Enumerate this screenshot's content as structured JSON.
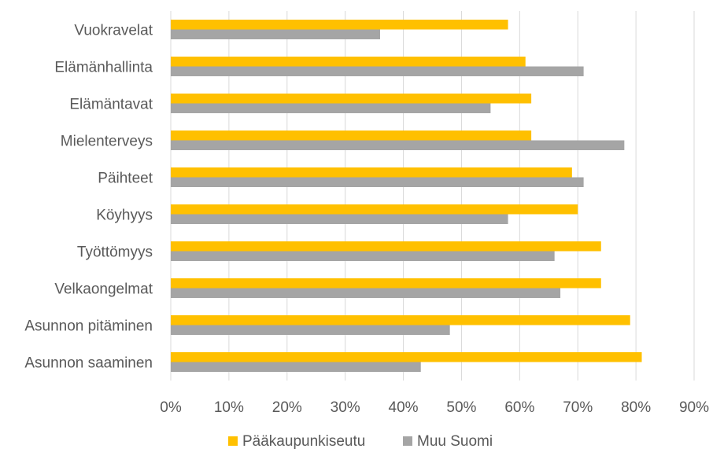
{
  "chart_data": {
    "type": "bar",
    "orientation": "horizontal",
    "categories": [
      "Vuokravelat",
      "Elämänhallinta",
      "Elämäntavat",
      "Mielenterveys",
      "Päihteet",
      "Köyhyys",
      "Työttömyys",
      "Velkaongelmat",
      "Asunnon pitäminen",
      "Asunnon saaminen"
    ],
    "series": [
      {
        "name": "Pääkaupunkiseutu",
        "color": "#FFC000",
        "values": [
          58,
          61,
          62,
          62,
          69,
          70,
          74,
          74,
          79,
          81
        ]
      },
      {
        "name": "Muu Suomi",
        "color": "#A5A5A5",
        "values": [
          36,
          71,
          55,
          78,
          71,
          58,
          66,
          67,
          48,
          43
        ]
      }
    ],
    "xlim": [
      0,
      90
    ],
    "xticks": [
      0,
      10,
      20,
      30,
      40,
      50,
      60,
      70,
      80,
      90
    ],
    "tick_format": "{v}%",
    "grid": true,
    "legend_position": "bottom",
    "title": "",
    "xlabel": "",
    "ylabel": ""
  }
}
